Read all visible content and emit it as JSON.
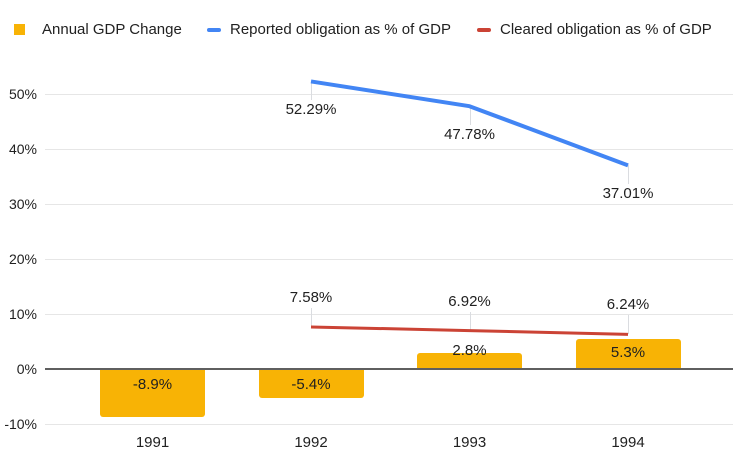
{
  "legend": {
    "items": [
      {
        "label": "Annual GDP Change",
        "color": "#F8B305",
        "swatch": "square"
      },
      {
        "label": "Reported obligation as % of GDP",
        "color": "#4285F4",
        "swatch": "line"
      },
      {
        "label": "Cleared obligation as % of GDP",
        "color": "#CB4335",
        "swatch": "line"
      }
    ]
  },
  "chart_data": {
    "type": "combo",
    "categories": [
      "1991",
      "1992",
      "1993",
      "1994"
    ],
    "series": [
      {
        "name": "Annual GDP Change",
        "type": "bar",
        "color": "#F8B305",
        "values": [
          -8.9,
          -5.4,
          2.8,
          5.3
        ],
        "labels": [
          "-8.9%",
          "-5.4%",
          "2.8%",
          "5.3%"
        ]
      },
      {
        "name": "Reported obligation as % of GDP",
        "type": "line",
        "color": "#4285F4",
        "line_width": 4,
        "label_side": "below",
        "values": [
          null,
          52.29,
          47.78,
          37.01
        ],
        "labels": [
          null,
          "52.29%",
          "47.78%",
          "37.01%"
        ]
      },
      {
        "name": "Cleared obligation as % of GDP",
        "type": "line",
        "color": "#CB4335",
        "line_width": 3,
        "label_side": "above",
        "values": [
          null,
          7.58,
          6.92,
          6.24
        ],
        "labels": [
          null,
          "7.58%",
          "6.92%",
          "6.24%"
        ]
      }
    ],
    "y_axis": {
      "min": -10,
      "max": 50,
      "step": 10,
      "tick_labels": [
        "-10%",
        "0%",
        "10%",
        "20%",
        "30%",
        "40%",
        "50%"
      ]
    },
    "x_axis": {
      "tick_labels": [
        "1991",
        "1992",
        "1993",
        "1994"
      ]
    },
    "grid": true,
    "legend_position": "top",
    "background": "#FFFFFF",
    "grid_color": "#E6E6E6",
    "zero_axis_color": "#5F5F5F",
    "label_color": "#212121"
  }
}
